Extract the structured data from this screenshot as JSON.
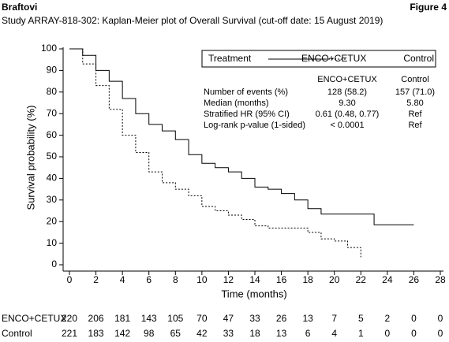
{
  "chart_data": {
    "type": "step",
    "brand": "Braftovi",
    "figure_label": "Figure 4",
    "title": "Study ARRAY-818-302: Kaplan-Meier plot of Overall Survival (cut-off date: 15 August 2019)",
    "xlabel": "Time (months)",
    "ylabel": "Survival probability (%)",
    "xlim": [
      0,
      28
    ],
    "ylim": [
      0,
      100
    ],
    "xticks": [
      0,
      2,
      4,
      6,
      8,
      10,
      12,
      14,
      16,
      18,
      20,
      22,
      24,
      26,
      28
    ],
    "yticks": [
      0,
      10,
      20,
      30,
      40,
      50,
      60,
      70,
      80,
      90,
      100
    ],
    "legend_title": "Treatment",
    "series": [
      {
        "name": "ENCO+CETUX",
        "color": "#000000",
        "dash": "solid",
        "x": [
          0,
          1,
          2,
          3,
          4,
          5,
          6,
          7,
          8,
          9,
          10,
          11,
          12,
          13,
          14,
          15,
          16,
          17,
          18,
          19,
          23,
          26
        ],
        "values": [
          100,
          97,
          90,
          85,
          77,
          70,
          65,
          62,
          58,
          51,
          47,
          45,
          43,
          40,
          36,
          35,
          33,
          30,
          26,
          23.5,
          18.5,
          18.5
        ]
      },
      {
        "name": "Control",
        "color": "#000000",
        "dash": "dashed",
        "x": [
          0,
          1,
          2,
          3,
          4,
          5,
          6,
          7,
          8,
          9,
          10,
          11,
          12,
          13,
          14,
          15,
          18,
          19,
          20,
          21,
          22
        ],
        "values": [
          100,
          93,
          83,
          72,
          60,
          52,
          43,
          38,
          35,
          32,
          27,
          25,
          23,
          21,
          18,
          17,
          15,
          12,
          11,
          8,
          3.5
        ]
      }
    ],
    "stats_table": {
      "columns": [
        "ENCO+CETUX",
        "Control"
      ],
      "rows": [
        {
          "label": "Number of events (%)",
          "values": [
            "128 (58.2)",
            "157 (71.0)"
          ]
        },
        {
          "label": "Median (months)",
          "values": [
            "9.30",
            "5.80"
          ]
        },
        {
          "label": "Stratified HR (95% CI)",
          "values": [
            "0.61 (0.48, 0.77)",
            "Ref"
          ]
        },
        {
          "label": "Log-rank p-value (1-sided)",
          "values": [
            "< 0.0001",
            "Ref"
          ]
        }
      ]
    },
    "risk_table": [
      {
        "name": "ENCO+CETUX",
        "values": [
          220,
          206,
          181,
          143,
          105,
          70,
          47,
          33,
          26,
          13,
          7,
          5,
          2,
          0,
          0
        ]
      },
      {
        "name": "Control",
        "values": [
          221,
          183,
          142,
          98,
          65,
          42,
          33,
          18,
          13,
          6,
          4,
          1,
          0,
          0,
          0
        ]
      }
    ]
  }
}
